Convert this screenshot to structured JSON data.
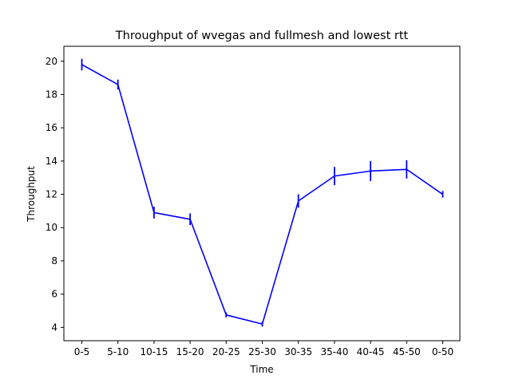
{
  "chart_data": {
    "type": "line",
    "title": "Throughput of wvegas and fullmesh and lowest rtt",
    "xlabel": "Time",
    "ylabel": "Throughput",
    "categories": [
      "0-5",
      "5-10",
      "10-15",
      "15-20",
      "20-25",
      "25-30",
      "30-35",
      "35-40",
      "40-45",
      "45-50",
      "0-50"
    ],
    "series": [
      {
        "values": [
          19.8,
          18.6,
          10.9,
          10.5,
          4.75,
          4.2,
          11.6,
          13.1,
          13.4,
          13.5,
          12.0
        ],
        "errors": [
          0.35,
          0.3,
          0.35,
          0.35,
          0.15,
          0.15,
          0.4,
          0.55,
          0.6,
          0.55,
          0.2
        ],
        "color": "#0000ff"
      }
    ],
    "ylim": [
      3.2,
      20.9
    ],
    "yticks": [
      4,
      6,
      8,
      10,
      12,
      14,
      16,
      18,
      20
    ],
    "grid": false
  }
}
